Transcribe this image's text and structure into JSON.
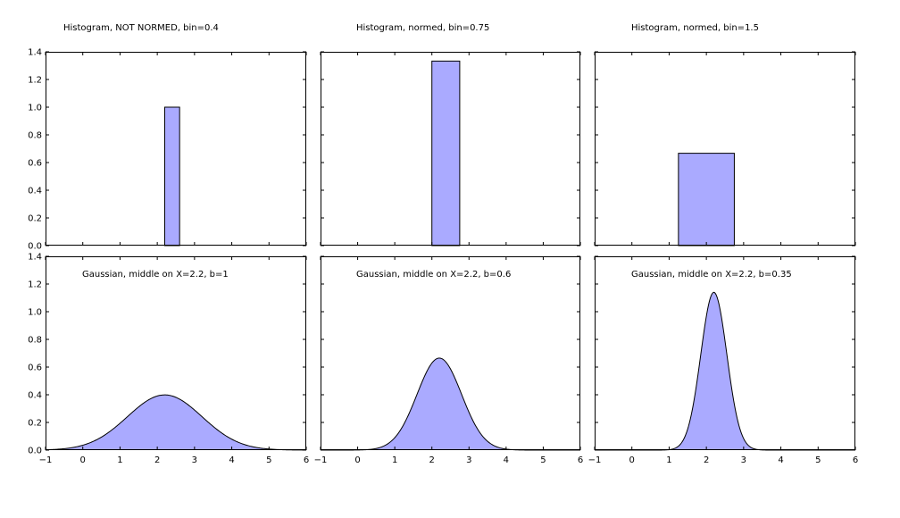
{
  "chart_data": [
    {
      "type": "bar",
      "title": "Histogram, NOT NORMED, bin=0.4",
      "bins": [
        {
          "x0": 2.2,
          "x1": 2.6,
          "height": 1.0
        }
      ],
      "xlim": [
        -1,
        6
      ],
      "ylim": [
        0,
        1.4
      ],
      "yticks": [
        "0.0",
        "0.2",
        "0.4",
        "0.6",
        "0.8",
        "1.0",
        "1.2",
        "1.4"
      ],
      "xticks": [],
      "show_ytick_labels": true,
      "baseline_segment": [
        -1,
        6
      ]
    },
    {
      "type": "bar",
      "title": "Histogram, normed, bin=0.75",
      "bins": [
        {
          "x0": 2.0,
          "x1": 2.75,
          "height": 1.333
        }
      ],
      "xlim": [
        -1,
        6
      ],
      "ylim": [
        0,
        1.4
      ],
      "yticks": [],
      "xticks": [],
      "show_ytick_labels": false,
      "baseline_segment": [
        -0.25,
        0.5
      ]
    },
    {
      "type": "bar",
      "title": "Histogram, normed, bin=1.5",
      "bins": [
        {
          "x0": 1.25,
          "x1": 2.75,
          "height": 0.667
        }
      ],
      "xlim": [
        -1,
        6
      ],
      "ylim": [
        0,
        1.4
      ],
      "yticks": [],
      "xticks": [],
      "show_ytick_labels": false,
      "baseline_segment": [
        -0.25,
        1.25
      ]
    },
    {
      "type": "area",
      "title": "Gaussian, middle on X=2.2, b=1",
      "gaussian": {
        "mean": 2.2,
        "b": 1
      },
      "xlim": [
        -1,
        6
      ],
      "ylim": [
        0,
        1.4
      ],
      "yticks": [
        "0.0",
        "0.2",
        "0.4",
        "0.6",
        "0.8",
        "1.0",
        "1.2",
        "1.4"
      ],
      "xticks": [
        "−1",
        "0",
        "1",
        "2",
        "3",
        "4",
        "5",
        "6"
      ],
      "show_ytick_labels": true
    },
    {
      "type": "area",
      "title": "Gaussian, middle on X=2.2, b=0.6",
      "gaussian": {
        "mean": 2.2,
        "b": 0.6
      },
      "xlim": [
        -1,
        6
      ],
      "ylim": [
        0,
        1.4
      ],
      "yticks": [],
      "xticks": [
        "−1",
        "0",
        "1",
        "2",
        "3",
        "4",
        "5",
        "6"
      ],
      "show_ytick_labels": false
    },
    {
      "type": "area",
      "title": "Gaussian, middle on X=2.2, b=0.35",
      "gaussian": {
        "mean": 2.2,
        "b": 0.35
      },
      "xlim": [
        -1,
        6
      ],
      "ylim": [
        0,
        1.4
      ],
      "yticks": [],
      "xticks": [
        "−1",
        "0",
        "1",
        "2",
        "3",
        "4",
        "5",
        "6"
      ],
      "show_ytick_labels": false
    }
  ],
  "colors": {
    "fill": "#aaaaff",
    "stroke": "#000000",
    "background": "#ffffff"
  }
}
